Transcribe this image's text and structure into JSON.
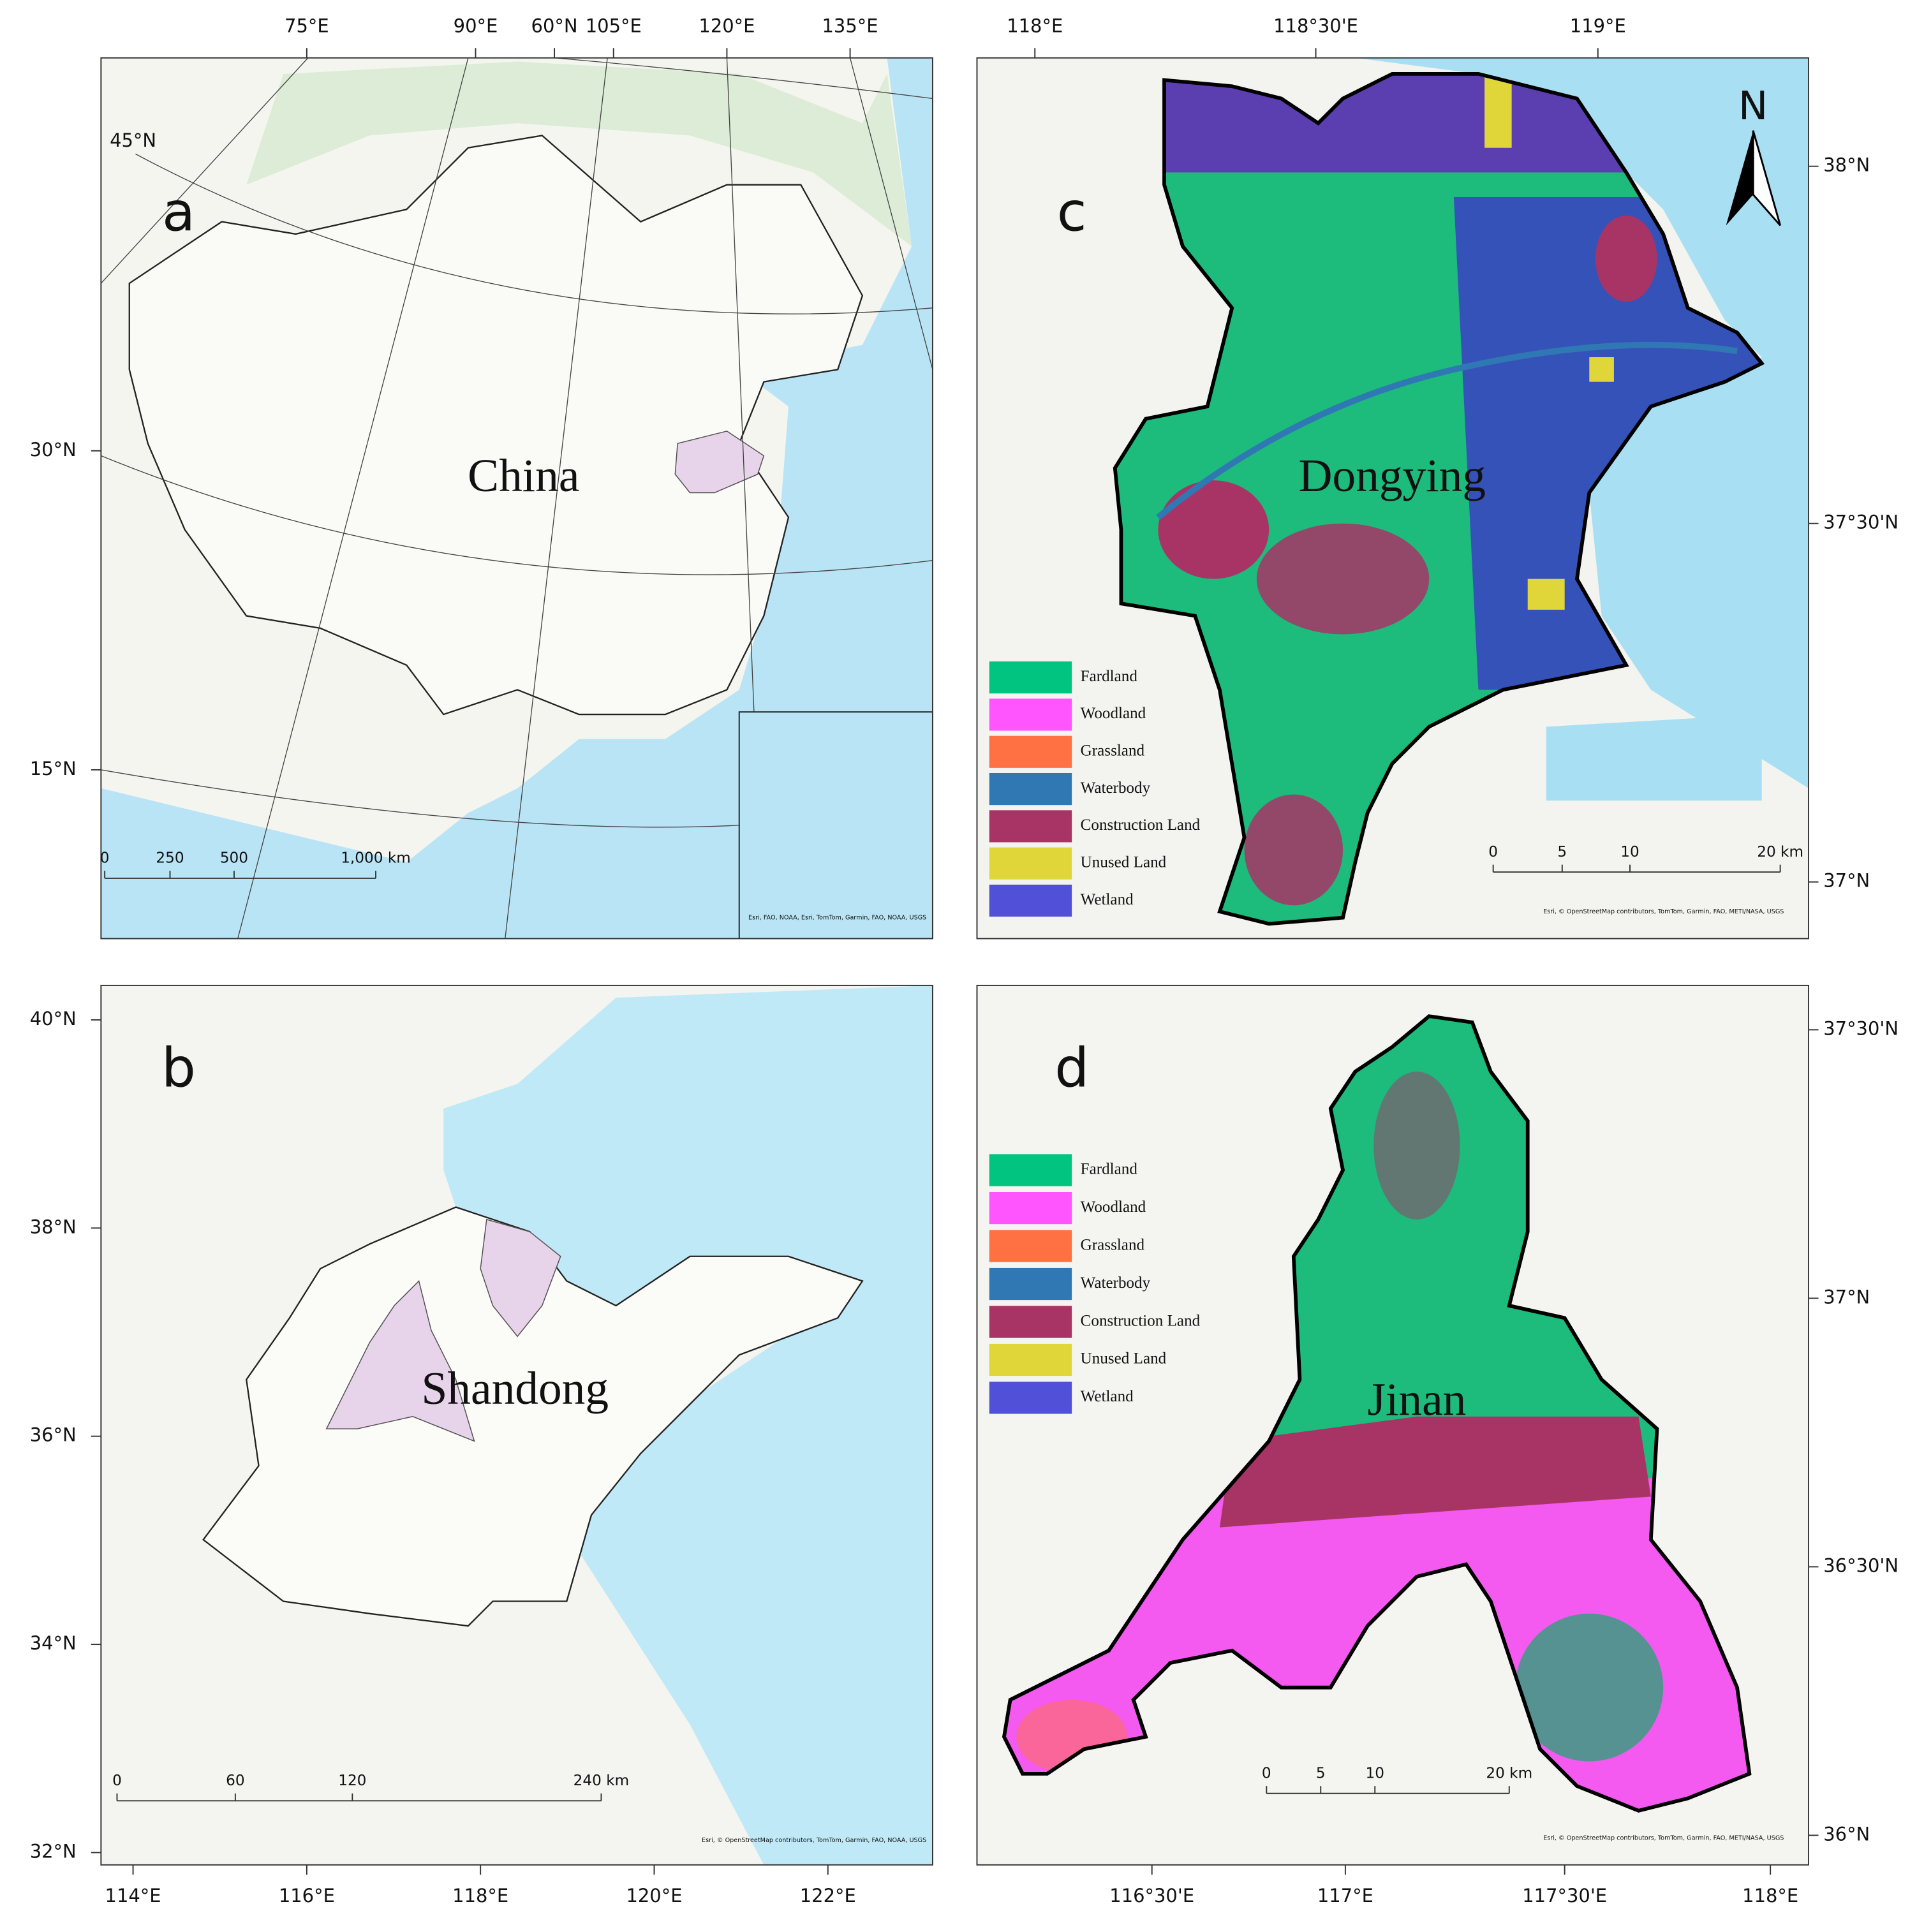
{
  "panels": [
    {
      "letter": "a",
      "place": "China",
      "top_labels": [
        "75°E",
        "90°E",
        "60°N",
        "105°E",
        "120°E",
        "135°E"
      ],
      "left_labels": [
        "45°N",
        "30°N",
        "15°N"
      ],
      "scale_labels": [
        "0",
        "250",
        "500",
        "1,000 km"
      ],
      "attribution": "Esri, FAO, NOAA, Esri, TomTom, Garmin, FAO, NOAA, USGS"
    },
    {
      "letter": "b",
      "place": "Shandong",
      "left_labels": [
        "40°N",
        "38°N",
        "36°N",
        "34°N",
        "32°N"
      ],
      "bottom_labels": [
        "114°E",
        "116°E",
        "118°E",
        "120°E",
        "122°E"
      ],
      "scale_labels": [
        "0",
        "60",
        "120",
        "240 km"
      ],
      "attribution": "Esri, © OpenStreetMap contributors, TomTom, Garmin, FAO, NOAA, USGS"
    },
    {
      "letter": "c",
      "place": "Dongying",
      "north": "N",
      "top_labels": [
        "118°E",
        "118°30'E",
        "119°E"
      ],
      "right_labels": [
        "38°N",
        "37°30'N",
        "37°N"
      ],
      "scale_labels": [
        "0",
        "5",
        "10",
        "20 km"
      ],
      "legend": [
        {
          "label": "Fardland",
          "color": "#00c47f"
        },
        {
          "label": "Woodland",
          "color": "#ff55ff"
        },
        {
          "label": "Grassland",
          "color": "#ff7043"
        },
        {
          "label": "Waterbody",
          "color": "#2f78b4"
        },
        {
          "label": "Construction Land",
          "color": "#a83466"
        },
        {
          "label": "Unused Land",
          "color": "#e0d63a"
        },
        {
          "label": "Wetland",
          "color": "#5050d8"
        }
      ],
      "attribution": "Esri, © OpenStreetMap contributors, TomTom, Garmin, FAO, METI/NASA, USGS"
    },
    {
      "letter": "d",
      "place": "Jinan",
      "right_labels": [
        "37°30'N",
        "37°N",
        "36°30'N",
        "36°N"
      ],
      "bottom_labels": [
        "116°30'E",
        "117°E",
        "117°30'E",
        "118°E"
      ],
      "scale_labels": [
        "0",
        "5",
        "10",
        "20 km"
      ],
      "legend": [
        {
          "label": "Fardland",
          "color": "#00c47f"
        },
        {
          "label": "Woodland",
          "color": "#ff55ff"
        },
        {
          "label": "Grassland",
          "color": "#ff7043"
        },
        {
          "label": "Waterbody",
          "color": "#2f78b4"
        },
        {
          "label": "Construction Land",
          "color": "#a83466"
        },
        {
          "label": "Unused Land",
          "color": "#e0d63a"
        },
        {
          "label": "Wetland",
          "color": "#5050d8"
        }
      ],
      "attribution": "Esri, © OpenStreetMap contributors, TomTom, Garmin, FAO, METI/NASA, USGS"
    }
  ]
}
